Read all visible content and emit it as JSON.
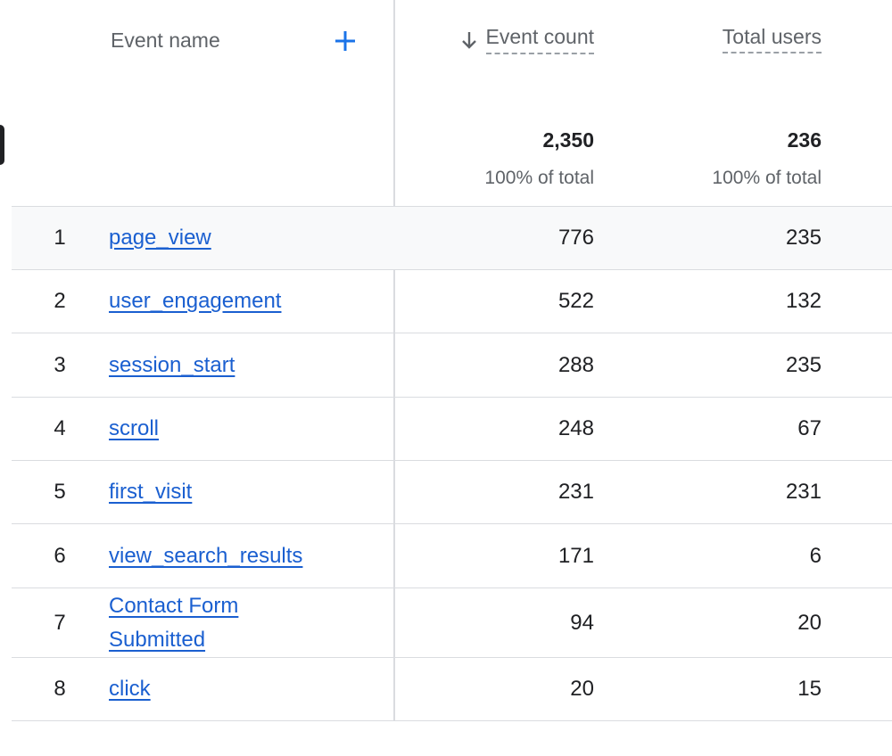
{
  "header": {
    "columns": {
      "event_name": "Event name",
      "event_count": "Event count",
      "total_users": "Total users"
    }
  },
  "totals": {
    "event_count": "2,350",
    "event_count_share": "100% of total",
    "total_users": "236",
    "total_users_share": "100% of total"
  },
  "table": {
    "rows": [
      {
        "rank": 1,
        "event_name": "page_view",
        "event_count": 776,
        "total_users": 235
      },
      {
        "rank": 2,
        "event_name": "user_engagement",
        "event_count": 522,
        "total_users": 132
      },
      {
        "rank": 3,
        "event_name": "session_start",
        "event_count": 288,
        "total_users": 235
      },
      {
        "rank": 4,
        "event_name": "scroll",
        "event_count": 248,
        "total_users": 67
      },
      {
        "rank": 5,
        "event_name": "first_visit",
        "event_count": 231,
        "total_users": 231
      },
      {
        "rank": 6,
        "event_name": "view_search_results",
        "event_count": 171,
        "total_users": 6
      },
      {
        "rank": 7,
        "event_name": "Contact Form Submitted",
        "event_count": 94,
        "total_users": 20
      },
      {
        "rank": 8,
        "event_name": "click",
        "event_count": 20,
        "total_users": 15
      }
    ]
  }
}
